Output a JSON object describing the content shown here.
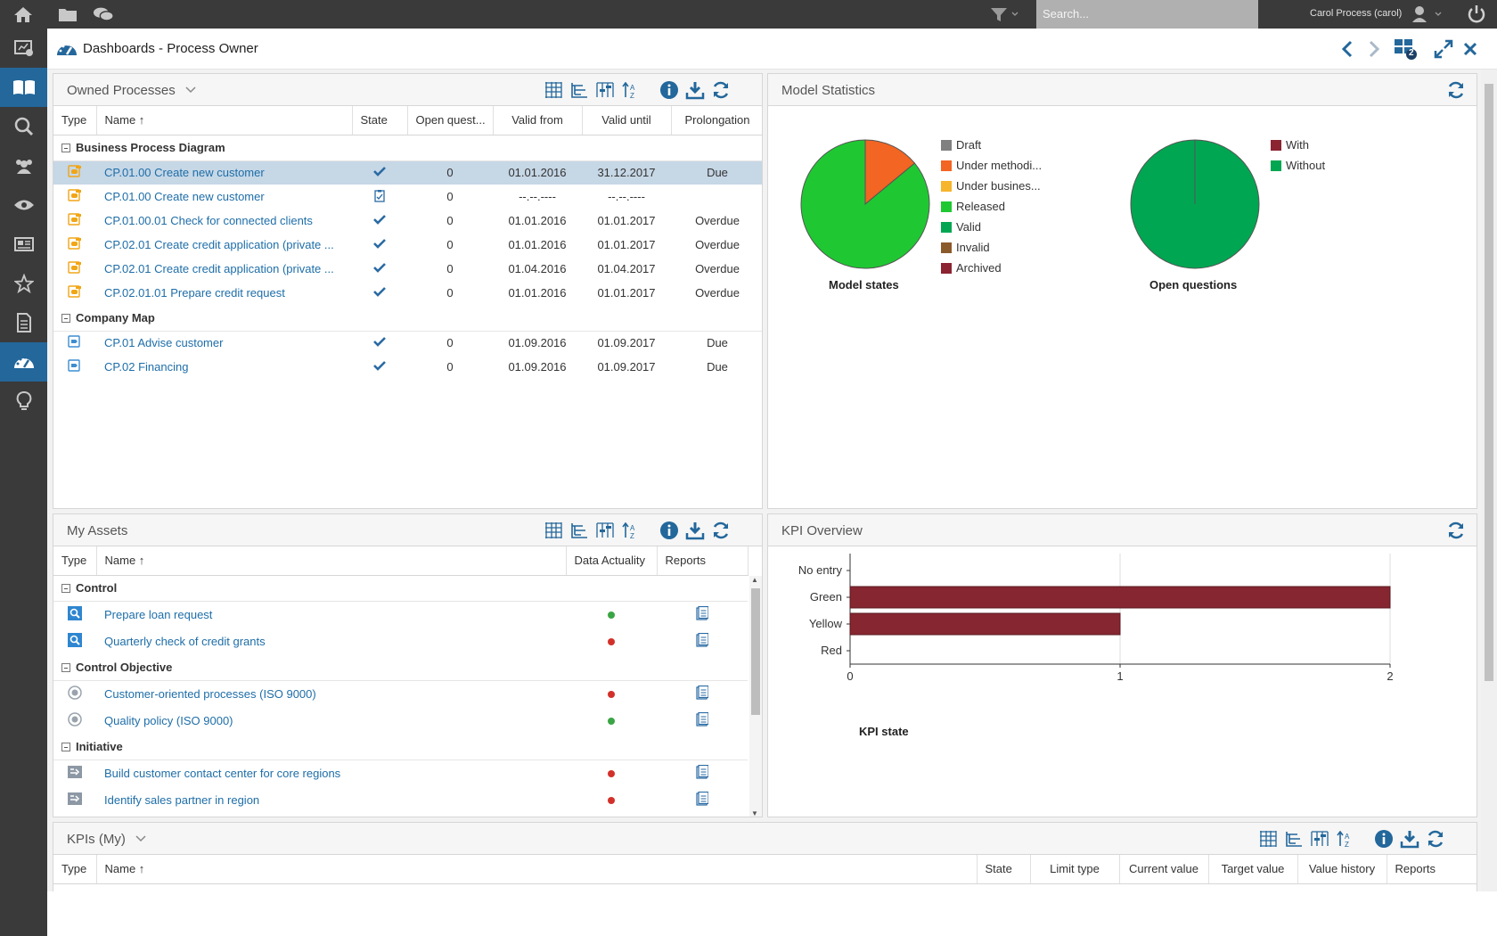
{
  "topbar": {
    "search_placeholder": "Search...",
    "user": "Carol Process (carol)"
  },
  "sidebar": {
    "items": [
      "home",
      "dashboard-check",
      "book",
      "search",
      "users",
      "eye",
      "newspaper",
      "star",
      "document",
      "dashboard",
      "lightbulb"
    ],
    "active": "dashboard"
  },
  "header": {
    "title": "Dashboards - Process Owner",
    "badge": "2"
  },
  "owned": {
    "title": "Owned Processes",
    "columns": [
      "Type",
      "Name ↑",
      "State",
      "Open quest...",
      "Valid from",
      "Valid until",
      "Prolongation"
    ],
    "groups": [
      {
        "label": "Business Process Diagram",
        "rows": [
          {
            "name": "CP.01.00 Create new customer",
            "state": "check",
            "open": "0",
            "from": "01.01.2016",
            "until": "31.12.2017",
            "prolong": "Due",
            "selected": true
          },
          {
            "name": "CP.01.00 Create new customer",
            "state": "clipboard",
            "open": "0",
            "from": "--.--.----",
            "until": "--.--.----",
            "prolong": ""
          },
          {
            "name": "CP.01.00.01 Check for connected clients",
            "state": "check",
            "open": "0",
            "from": "01.01.2016",
            "until": "01.01.2017",
            "prolong": "Overdue"
          },
          {
            "name": "CP.02.01 Create credit application (private ...",
            "state": "check",
            "open": "0",
            "from": "01.01.2016",
            "until": "01.01.2017",
            "prolong": "Overdue"
          },
          {
            "name": "CP.02.01 Create credit application (private ...",
            "state": "check",
            "open": "0",
            "from": "01.04.2016",
            "until": "01.04.2017",
            "prolong": "Overdue"
          },
          {
            "name": "CP.02.01.01 Prepare credit request",
            "state": "check",
            "open": "0",
            "from": "01.01.2016",
            "until": "01.01.2017",
            "prolong": "Overdue"
          }
        ]
      },
      {
        "label": "Company Map",
        "rows": [
          {
            "name": "CP.01 Advise customer",
            "state": "check",
            "open": "0",
            "from": "01.09.2016",
            "until": "01.09.2017",
            "prolong": "Due"
          },
          {
            "name": "CP.02 Financing",
            "state": "check",
            "open": "0",
            "from": "01.09.2016",
            "until": "01.09.2017",
            "prolong": "Due"
          }
        ]
      }
    ]
  },
  "model_stats": {
    "title": "Model Statistics",
    "model_states_label": "Model states",
    "open_questions_label": "Open questions",
    "legend1": [
      {
        "label": "Draft",
        "color": "#808080"
      },
      {
        "label": "Under methodi...",
        "color": "#f26522"
      },
      {
        "label": "Under busines...",
        "color": "#f7b52c"
      },
      {
        "label": "Released",
        "color": "#1fc832"
      },
      {
        "label": "Valid",
        "color": "#00a651"
      },
      {
        "label": "Invalid",
        "color": "#8b5a2b"
      },
      {
        "label": "Archived",
        "color": "#8b2331"
      }
    ],
    "legend2": [
      {
        "label": "With",
        "color": "#8b2331"
      },
      {
        "label": "Without",
        "color": "#00a651"
      }
    ],
    "pie1_fractions": {
      "Released": 0.86,
      "Under methodi...": 0.14
    },
    "pie2_fractions": {
      "Without": 1.0
    }
  },
  "assets": {
    "title": "My Assets",
    "columns": [
      "Type",
      "Name ↑",
      "Data Actuality",
      "Reports"
    ],
    "groups": [
      {
        "label": "Control",
        "icon": "search",
        "rows": [
          {
            "name": "Prepare loan request",
            "actuality": "green"
          },
          {
            "name": "Quarterly check of credit grants",
            "actuality": "red"
          }
        ]
      },
      {
        "label": "Control Objective",
        "icon": "target",
        "rows": [
          {
            "name": "Customer-oriented processes (ISO 9000)",
            "actuality": "red"
          },
          {
            "name": "Quality policy (ISO 9000)",
            "actuality": "green"
          }
        ]
      },
      {
        "label": "Initiative",
        "icon": "initiative",
        "rows": [
          {
            "name": "Build customer contact center for core regions",
            "actuality": "red"
          },
          {
            "name": "Identify sales partner in region",
            "actuality": "red"
          }
        ]
      }
    ]
  },
  "kpi_overview": {
    "title": "KPI Overview",
    "xlabel": "KPI state"
  },
  "chart_data": {
    "type": "bar",
    "orientation": "horizontal",
    "categories": [
      "No entry",
      "Green",
      "Yellow",
      "Red"
    ],
    "values": [
      0,
      2,
      1,
      0
    ],
    "xlabel": "KPI state",
    "ylabel": "",
    "xlim": [
      0,
      2
    ],
    "xticks": [
      "0",
      "1",
      "2"
    ],
    "color": "#862630",
    "grid": true
  },
  "kpis": {
    "title": "KPIs (My)",
    "columns": [
      "Type",
      "Name ↑",
      "State",
      "Limit type",
      "Current value",
      "Target value",
      "Value history",
      "Reports"
    ]
  }
}
